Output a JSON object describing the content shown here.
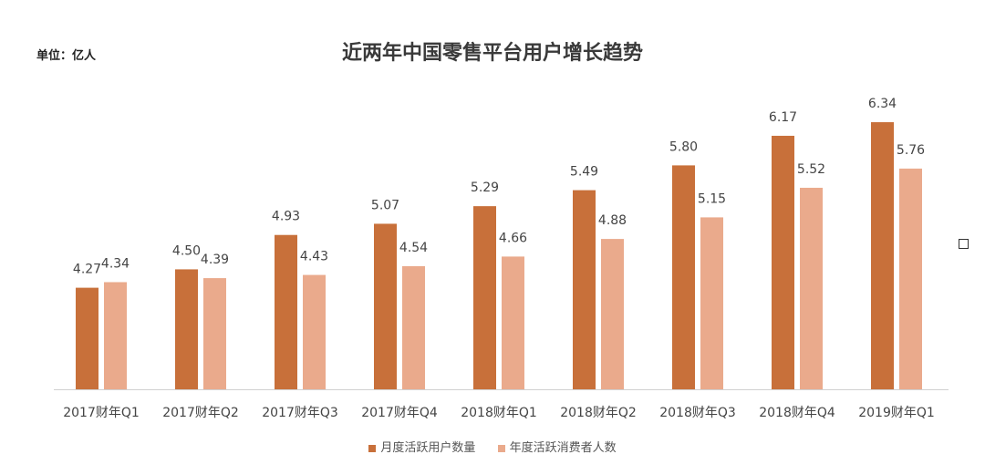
{
  "chart_data": {
    "type": "bar",
    "title": "近两年中国零售平台用户增长趋势",
    "unit_label": "单位：亿人",
    "categories": [
      "2017财年Q1",
      "2017财年Q2",
      "2017财年Q3",
      "2017财年Q4",
      "2018财年Q1",
      "2018财年Q2",
      "2018财年Q3",
      "2018财年Q4",
      "2019财年Q1"
    ],
    "series": [
      {
        "name": "月度活跃用户数量",
        "color": "#c8703a",
        "values": [
          4.27,
          4.5,
          4.93,
          5.07,
          5.29,
          5.49,
          5.8,
          6.17,
          6.34
        ],
        "labels": [
          "4.27",
          "4.50",
          "4.93",
          "5.07",
          "5.29",
          "5.49",
          "5.80",
          "6.17",
          "6.34"
        ]
      },
      {
        "name": "年度活跃消费者人数",
        "color": "#eaaa8c",
        "values": [
          4.34,
          4.39,
          4.43,
          4.54,
          4.66,
          4.88,
          5.15,
          5.52,
          5.76
        ],
        "labels": [
          "4.34",
          "4.39",
          "4.43",
          "4.54",
          "4.66",
          "4.88",
          "5.15",
          "5.52",
          "5.76"
        ]
      }
    ],
    "ylim": [
      3.0,
      6.5
    ],
    "grid": false,
    "legend_position": "bottom"
  }
}
